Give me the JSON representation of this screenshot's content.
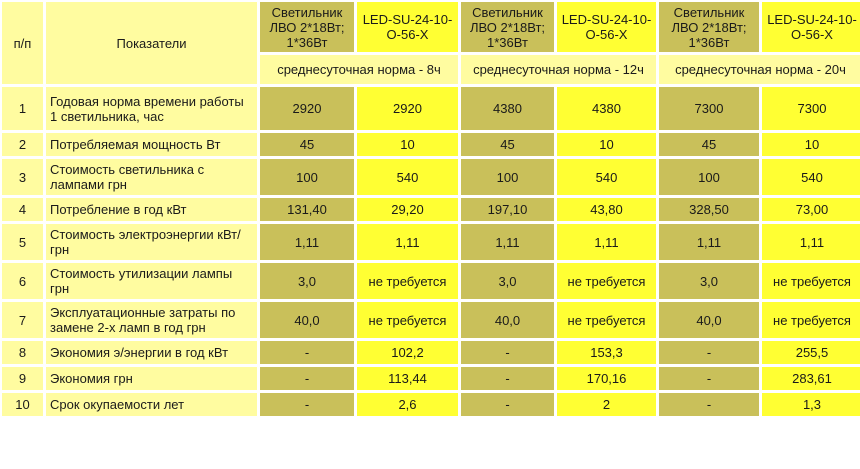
{
  "header": {
    "col_num": "п/п",
    "col_indicator": "Показатели",
    "groups": [
      {
        "fixture_a": "Светильник ЛВО 2*18Вт; 1*36Вт",
        "fixture_b": "LED-SU-24-10-O-56-X",
        "norm": "среднесуточная норма - 8ч"
      },
      {
        "fixture_a": "Светильник ЛВО 2*18Вт; 1*36Вт",
        "fixture_b": "LED-SU-24-10-O-56-X",
        "norm": "среднесуточная норма - 12ч"
      },
      {
        "fixture_a": "Светильник ЛВО 2*18Вт; 1*36Вт",
        "fixture_b": "LED-SU-24-10-O-56-X",
        "norm": "среднесуточная норма - 20ч"
      }
    ]
  },
  "rows": [
    {
      "n": "1",
      "label": "Годовая норма времени работы 1 светильника, час",
      "v": [
        "2920",
        "2920",
        "4380",
        "4380",
        "7300",
        "7300"
      ]
    },
    {
      "n": "2",
      "label": "Потребляемая мощность Вт",
      "v": [
        "45",
        "10",
        "45",
        "10",
        "45",
        "10"
      ]
    },
    {
      "n": "3",
      "label": "Стоимость светильника с лампами грн",
      "v": [
        "100",
        "540",
        "100",
        "540",
        "100",
        "540"
      ]
    },
    {
      "n": "4",
      "label": "Потребление в год кВт",
      "v": [
        "131,40",
        "29,20",
        "197,10",
        "43,80",
        "328,50",
        "73,00"
      ]
    },
    {
      "n": "5",
      "label": "Стоимость электроэнергии кВт/грн",
      "v": [
        "1,11",
        "1,11",
        "1,11",
        "1,11",
        "1,11",
        "1,11"
      ]
    },
    {
      "n": "6",
      "label": "Стоимость утилизации лампы грн",
      "v": [
        "3,0",
        "не требуется",
        "3,0",
        "не требуется",
        "3,0",
        "не требуется"
      ]
    },
    {
      "n": "7",
      "label": "Эксплуатационные затраты по замене 2-х ламп в год грн",
      "v": [
        "40,0",
        "не требуется",
        "40,0",
        "не требуется",
        "40,0",
        "не требуется"
      ]
    },
    {
      "n": "8",
      "label": "Экономия э/энергии в год кВт",
      "v": [
        "-",
        "102,2",
        "-",
        "153,3",
        "-",
        "255,5"
      ]
    },
    {
      "n": "9",
      "label": "Экономия грн",
      "v": [
        "-",
        "113,44",
        "-",
        "170,16",
        "-",
        "283,61"
      ]
    },
    {
      "n": "10",
      "label": "Срок окупаемости лет",
      "v": [
        "-",
        "2,6",
        "-",
        "2",
        "-",
        "1,3"
      ]
    }
  ],
  "colors": {
    "pale": "#fffca0",
    "olive": "#c9c05a",
    "bright": "#ffff33"
  }
}
